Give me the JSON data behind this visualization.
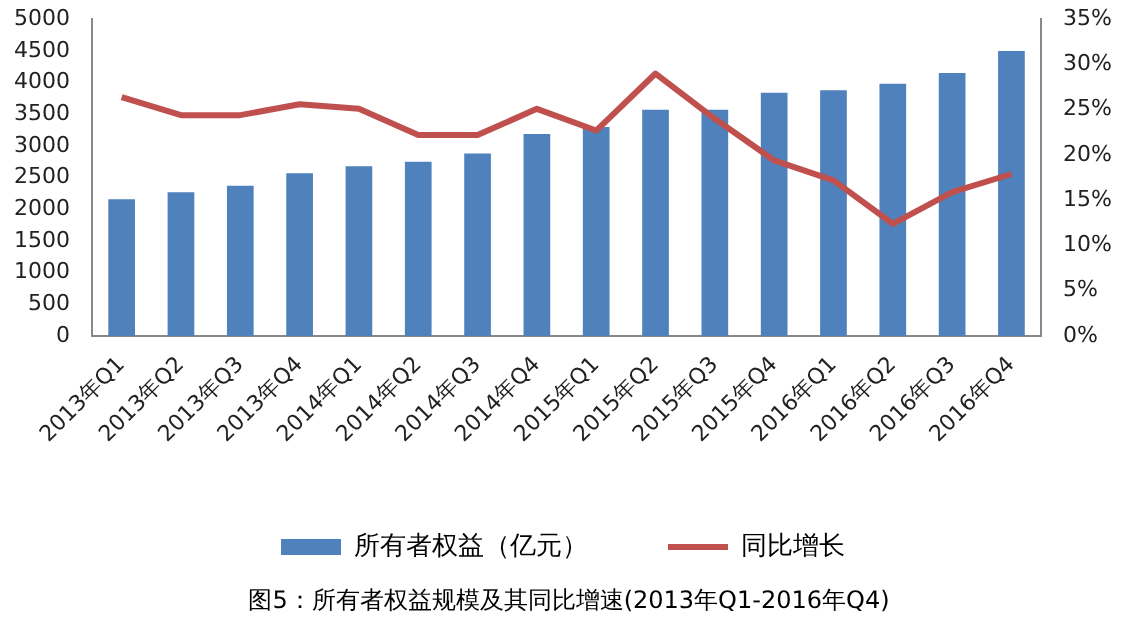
{
  "chart_data": {
    "type": "bar",
    "title": "图5：所有者权益规模及其同比增速(2013年Q1-2016年Q4)",
    "categories": [
      "2013年Q1",
      "2013年Q2",
      "2013年Q3",
      "2013年Q4",
      "2014年Q1",
      "2014年Q2",
      "2014年Q3",
      "2014年Q4",
      "2015年Q1",
      "2015年Q2",
      "2015年Q3",
      "2015年Q4",
      "2016年Q1",
      "2016年Q2",
      "2016年Q3",
      "2016年Q4"
    ],
    "series": [
      {
        "name": "所有者权益（亿元）",
        "color": "#4f81bd",
        "values": [
          2160,
          2270,
          2370,
          2570,
          2680,
          2750,
          2880,
          3190,
          3300,
          3570,
          3570,
          3840,
          3880,
          3980,
          4150,
          4500
        ]
      },
      {
        "name": "同比增长",
        "type": "line",
        "axis": "y2",
        "color": "#c0504d",
        "values": [
          26.4,
          24.4,
          24.4,
          25.6,
          25.1,
          22.2,
          22.2,
          25.1,
          22.7,
          29.0,
          24.0,
          19.4,
          17.2,
          12.4,
          15.9,
          17.9
        ]
      }
    ],
    "ylim": [
      0,
      5000
    ],
    "yticks": [
      0,
      500,
      1000,
      1500,
      2000,
      2500,
      3000,
      3500,
      4000,
      4500,
      5000
    ],
    "y2lim": [
      0,
      35
    ],
    "y2ticks": [
      {
        "value": 0,
        "label": "0%"
      },
      {
        "value": 5,
        "label": "5%"
      },
      {
        "value": 10,
        "label": "10%"
      },
      {
        "value": 15,
        "label": "15%"
      },
      {
        "value": 20,
        "label": "20%"
      },
      {
        "value": 25,
        "label": "25%"
      },
      {
        "value": 30,
        "label": "30%"
      },
      {
        "value": 35,
        "label": "35%"
      }
    ],
    "grid": false,
    "legend": "bottom",
    "marker": "none",
    "line_style": "solid"
  }
}
